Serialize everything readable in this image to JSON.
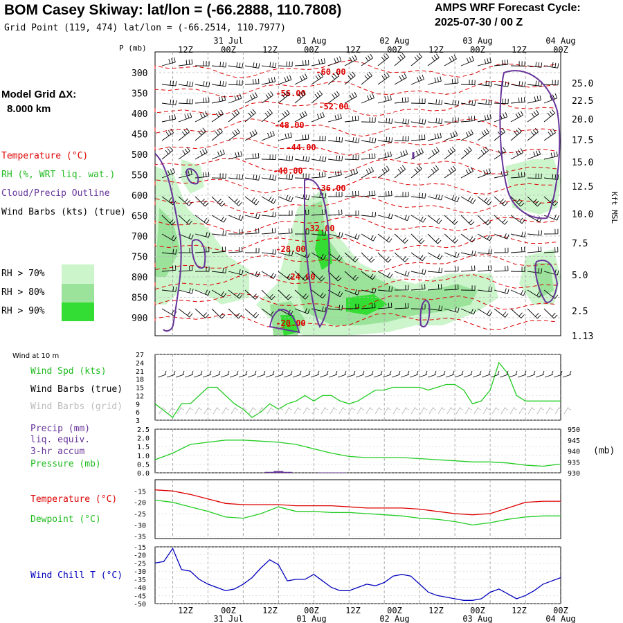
{
  "header": {
    "title": "BOM Casey Skiway:  lat/lon = (-66.2888, 110.7808)",
    "grid_point": "Grid Point (119, 474) lat/lon = (-66.2514, 110.7977)",
    "cycle_label": "AMPS WRF Forecast Cycle:",
    "cycle_value": "2025-07-30 / 00  Z"
  },
  "left_legend": {
    "model_grid_line1": "Model Grid ΔX:",
    "model_grid_line2": "8.000 km",
    "temperature": "Temperature (°C)",
    "rh": "RH (%, WRT liq. wat.)",
    "cloud": "Cloud/Precip Outline",
    "wind_barbs": "Wind Barbs (kts) (true)",
    "rh70": "RH > 70%",
    "rh80": "RH > 80%",
    "rh90": "RH > 90%"
  },
  "colors": {
    "temperature": "#dd0000",
    "rh70": "#ccf5cc",
    "rh80": "#9be39b",
    "rh90": "#33dd33",
    "cloud": "#663399",
    "wind_speed": "#22cc22",
    "precip": "#663399",
    "pressure": "#22cc22",
    "dewpoint": "#22cc22",
    "wind_chill": "#0000bb",
    "wind_barbs_grid": "#bbbbbb"
  },
  "time_axis": {
    "top_dates": [
      "31 Jul",
      "01 Aug",
      "02 Aug",
      "03 Aug",
      "04 Aug"
    ],
    "tick_labels": [
      "12Z",
      "00Z",
      "12Z",
      "00Z",
      "12Z",
      "00Z",
      "12Z",
      "00Z",
      "12Z",
      "00Z"
    ],
    "bottom_dates": [
      "31 Jul",
      "01 Aug",
      "02 Aug",
      "03 Aug",
      "04 Aug"
    ]
  },
  "chart_data": [
    {
      "type": "line",
      "title": "",
      "panel": "upper-air cross section",
      "ylabel": "P (mb)",
      "y_ticks_mb": [
        300,
        350,
        400,
        450,
        500,
        550,
        600,
        650,
        700,
        750,
        800,
        850,
        900
      ],
      "right_axis_label": "Kft MSL",
      "right_ticks_kft": [
        "25.0",
        "22.5",
        "20.0",
        "17.5",
        "15.0",
        "12.5",
        "10.0",
        "7.5",
        "5.0",
        "2.5",
        "1.13"
      ],
      "temperature_contour_labels": [
        "-60.00",
        "-56.00",
        "-52.00",
        "-48.00",
        "-44.00",
        "-40.00",
        "-36.00",
        "-32.00",
        "-28.00",
        "-24.00",
        "-20.00"
      ]
    },
    {
      "type": "line",
      "panel": "10 m wind",
      "header_label": "Wind at 10 m",
      "labels": {
        "speed": "Wind Spd (kts)",
        "barbs_true": "Wind Barbs (true)",
        "barbs_grid": "Wind Barbs (grid)"
      },
      "y_ticks": [
        3,
        6,
        9,
        12,
        15,
        18,
        21,
        24,
        27
      ],
      "ylim": [
        3,
        27
      ],
      "x_hours": [
        0,
        6,
        9,
        12,
        15,
        18,
        21,
        24,
        27,
        30,
        33,
        36,
        39,
        42,
        45,
        48,
        51,
        54,
        57,
        60,
        63,
        66,
        69,
        72,
        75,
        78,
        81,
        84,
        87,
        90,
        93,
        96,
        99,
        102,
        105,
        108,
        111,
        114,
        117,
        120,
        123,
        126,
        129,
        132,
        135,
        138
      ],
      "series": [
        {
          "name": "Wind Spd (kts)",
          "values": [
            9,
            4,
            9,
            9,
            12,
            15,
            15,
            12,
            9,
            7,
            4,
            6,
            9,
            7,
            9,
            10,
            12,
            10,
            12,
            12,
            10,
            9,
            10,
            12,
            14,
            14,
            15,
            15,
            15,
            15,
            14,
            15,
            16,
            16,
            14,
            9,
            10,
            14,
            24,
            20,
            12,
            10,
            10,
            10,
            10,
            10
          ]
        }
      ]
    },
    {
      "type": "bar",
      "panel": "precip and pressure",
      "labels": {
        "precip": "Precip (mm)",
        "precip2": "liq. equiv.",
        "precip3": "3-hr accum",
        "pressure": "Pressure (mb)",
        "right_unit": "(mb)"
      },
      "y_ticks_precip": [
        "0.0",
        "0.5",
        "1.0",
        "1.5",
        "2.0",
        "2.5"
      ],
      "y_ticks_pressure": [
        "930",
        "935",
        "940",
        "945",
        "950"
      ],
      "precip_hours": [
        39,
        42,
        45,
        57,
        60,
        63
      ],
      "precip_mm": [
        0.05,
        0.1,
        0.05,
        0.02,
        0.02,
        0.02
      ],
      "pressure_hours": [
        0,
        6,
        12,
        18,
        24,
        30,
        36,
        42,
        48,
        54,
        60,
        66,
        72,
        78,
        84,
        90,
        96,
        102,
        108,
        114,
        120,
        126,
        132,
        138
      ],
      "pressure_mb": [
        936,
        939,
        943,
        944,
        945,
        945,
        944.5,
        944,
        943,
        941,
        939,
        937.5,
        937,
        937,
        937,
        936.5,
        936,
        935.5,
        935,
        935,
        934.5,
        933.5,
        933,
        934
      ]
    },
    {
      "type": "line",
      "panel": "temperature and dewpoint",
      "labels": {
        "temperature": "Temperature (°C)",
        "dewpoint": "Dewpoint (°C)"
      },
      "y_ticks": [
        -35,
        -30,
        -25,
        -20,
        -15
      ],
      "ylim": [
        -36,
        -10
      ],
      "x_hours": [
        0,
        6,
        12,
        18,
        24,
        30,
        36,
        42,
        48,
        54,
        60,
        66,
        72,
        78,
        84,
        90,
        96,
        102,
        108,
        114,
        120,
        126,
        132,
        138
      ],
      "series": [
        {
          "name": "Temperature (°C)",
          "values": [
            -14.5,
            -15,
            -16.5,
            -18.5,
            -20.5,
            -21,
            -21,
            -21,
            -21.5,
            -21.5,
            -21.5,
            -22,
            -22.5,
            -22.5,
            -22.5,
            -23,
            -24,
            -25,
            -25.5,
            -25,
            -22.5,
            -20,
            -19.5,
            -19.5
          ]
        },
        {
          "name": "Dewpoint (°C)",
          "values": [
            -19,
            -20,
            -22,
            -24,
            -26.5,
            -27,
            -25,
            -22,
            -24,
            -24,
            -24.5,
            -24.5,
            -25,
            -25.5,
            -26,
            -27,
            -27.5,
            -28.5,
            -30,
            -29,
            -27.5,
            -26.5,
            -26,
            -26
          ]
        }
      ]
    },
    {
      "type": "line",
      "panel": "wind chill",
      "labels": {
        "wind_chill": "Wind Chill T (°C)"
      },
      "y_ticks": [
        -50,
        -45,
        -40,
        -35,
        -30,
        -25,
        -20,
        -15
      ],
      "ylim": [
        -50,
        -15
      ],
      "x_hours": [
        0,
        3,
        6,
        9,
        12,
        15,
        18,
        21,
        24,
        27,
        30,
        33,
        36,
        39,
        42,
        45,
        48,
        51,
        54,
        57,
        60,
        63,
        66,
        69,
        72,
        75,
        78,
        81,
        84,
        87,
        90,
        93,
        96,
        99,
        102,
        105,
        108,
        111,
        114,
        117,
        120,
        123,
        126,
        129,
        132,
        135,
        138
      ],
      "series": [
        {
          "name": "Wind Chill T (°C)",
          "values": [
            -25,
            -24,
            -16,
            -29,
            -30,
            -35,
            -38,
            -40,
            -42,
            -41,
            -38,
            -34,
            -28,
            -23,
            -26,
            -36,
            -35,
            -35,
            -32,
            -36,
            -40,
            -42,
            -42,
            -40,
            -38,
            -39,
            -37,
            -33,
            -32,
            -33,
            -38,
            -43,
            -45,
            -46,
            -47,
            -48,
            -48,
            -47,
            -43,
            -41,
            -44,
            -47,
            -45,
            -42,
            -38,
            -36,
            -34
          ]
        }
      ]
    }
  ]
}
